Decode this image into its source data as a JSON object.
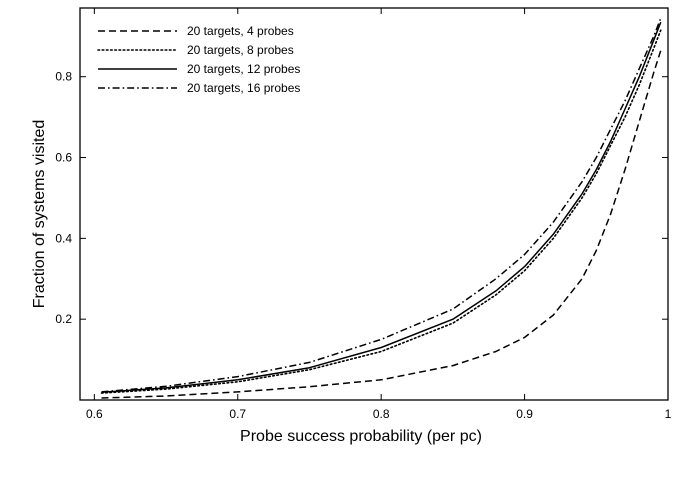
{
  "chart_data": {
    "type": "line",
    "title": "",
    "xlabel": "Probe success probability (per pc)",
    "ylabel": "Fraction of systems visited",
    "xlim": [
      0.59,
      1.0
    ],
    "ylim": [
      0.0,
      0.97
    ],
    "xticks": [
      0.6,
      0.7,
      0.8,
      0.9,
      1.0
    ],
    "xtick_labels": [
      "0.6",
      "0.7",
      "0.8",
      "0.9",
      "1"
    ],
    "yticks": [
      0.2,
      0.4,
      0.6,
      0.8
    ],
    "ytick_labels": [
      "0.2",
      "0.4",
      "0.6",
      "0.8"
    ],
    "grid": false,
    "legend_position": "top-left",
    "colors": {
      "line": "#000000",
      "background": "#ffffff"
    },
    "series": [
      {
        "name": "20 targets, 4 probes",
        "dash": "dashed",
        "x": [
          0.605,
          0.65,
          0.7,
          0.75,
          0.8,
          0.85,
          0.88,
          0.9,
          0.92,
          0.94,
          0.95,
          0.96,
          0.97,
          0.98,
          0.985,
          0.99,
          0.995
        ],
        "y": [
          0.005,
          0.01,
          0.02,
          0.033,
          0.05,
          0.085,
          0.12,
          0.155,
          0.21,
          0.3,
          0.37,
          0.46,
          0.57,
          0.69,
          0.75,
          0.81,
          0.865
        ]
      },
      {
        "name": "20 targets, 8 probes",
        "dash": "dotted",
        "x": [
          0.605,
          0.65,
          0.7,
          0.75,
          0.8,
          0.85,
          0.88,
          0.9,
          0.92,
          0.94,
          0.95,
          0.96,
          0.97,
          0.98,
          0.99,
          0.995
        ],
        "y": [
          0.017,
          0.027,
          0.045,
          0.075,
          0.12,
          0.19,
          0.26,
          0.32,
          0.4,
          0.5,
          0.56,
          0.63,
          0.7,
          0.78,
          0.87,
          0.915
        ]
      },
      {
        "name": "20 targets, 12 probes",
        "dash": "solid",
        "x": [
          0.605,
          0.65,
          0.7,
          0.75,
          0.8,
          0.85,
          0.88,
          0.9,
          0.92,
          0.94,
          0.95,
          0.96,
          0.97,
          0.98,
          0.99,
          0.995
        ],
        "y": [
          0.019,
          0.03,
          0.05,
          0.08,
          0.13,
          0.2,
          0.27,
          0.33,
          0.41,
          0.51,
          0.57,
          0.64,
          0.72,
          0.8,
          0.89,
          0.935
        ]
      },
      {
        "name": "20 targets, 16 probes",
        "dash": "dashdot",
        "x": [
          0.605,
          0.65,
          0.7,
          0.75,
          0.8,
          0.85,
          0.88,
          0.9,
          0.92,
          0.94,
          0.95,
          0.96,
          0.97,
          0.98,
          0.99,
          0.995
        ],
        "y": [
          0.02,
          0.034,
          0.058,
          0.093,
          0.15,
          0.225,
          0.3,
          0.36,
          0.44,
          0.54,
          0.6,
          0.67,
          0.74,
          0.82,
          0.9,
          0.945
        ]
      }
    ]
  }
}
